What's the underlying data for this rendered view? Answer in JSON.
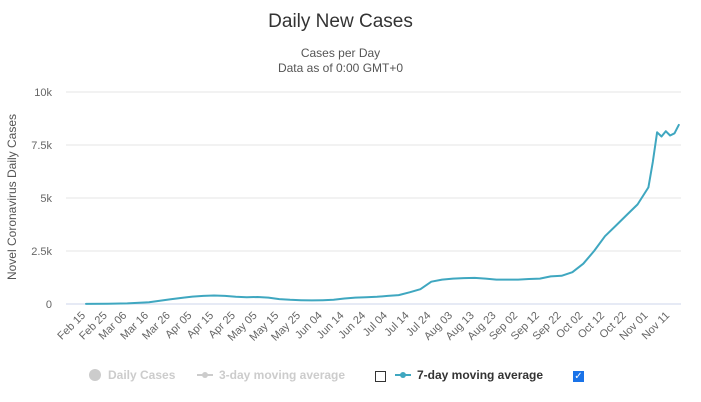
{
  "chart_data": {
    "type": "line",
    "title": "Daily New Cases",
    "subtitle_lines": [
      "Cases per Day",
      "Data as of 0:00 GMT+0"
    ],
    "ylabel": "Novel Coronavirus Daily Cases",
    "xlabel": "",
    "ylim": [
      0,
      10000
    ],
    "yticks": [
      0,
      2500,
      5000,
      7500,
      10000
    ],
    "ytick_labels": [
      "0",
      "2.5k",
      "5k",
      "7.5k",
      "10k"
    ],
    "xtick_labels": [
      "Feb 15",
      "Feb 25",
      "Mar 06",
      "Mar 16",
      "Mar 26",
      "Apr 05",
      "Apr 15",
      "Apr 25",
      "May 05",
      "May 15",
      "May 25",
      "Jun 04",
      "Jun 14",
      "Jun 24",
      "Jul 04",
      "Jul 14",
      "Jul 24",
      "Aug 03",
      "Aug 13",
      "Aug 23",
      "Sep 02",
      "Sep 12",
      "Sep 22",
      "Oct 02",
      "Oct 12",
      "Oct 22",
      "Nov 01",
      "Nov 11"
    ],
    "grid": true,
    "legend_position": "bottom",
    "series": [
      {
        "name": "7-day moving average",
        "color": "#3fa7c0",
        "x": [
          "Feb 15",
          "Feb 25",
          "Mar 06",
          "Mar 16",
          "Mar 26",
          "Apr 01",
          "Apr 05",
          "Apr 10",
          "Apr 15",
          "Apr 20",
          "Apr 25",
          "Apr 30",
          "May 05",
          "May 10",
          "May 15",
          "May 20",
          "May 25",
          "May 30",
          "Jun 04",
          "Jun 09",
          "Jun 14",
          "Jun 19",
          "Jun 24",
          "Jun 29",
          "Jul 04",
          "Jul 09",
          "Jul 14",
          "Jul 19",
          "Jul 24",
          "Jul 29",
          "Aug 03",
          "Aug 08",
          "Aug 13",
          "Aug 18",
          "Aug 23",
          "Aug 28",
          "Sep 02",
          "Sep 07",
          "Sep 12",
          "Sep 17",
          "Sep 22",
          "Sep 27",
          "Oct 02",
          "Oct 07",
          "Oct 12",
          "Oct 17",
          "Oct 22",
          "Oct 27",
          "Nov 01",
          "Nov 03",
          "Nov 05",
          "Nov 07",
          "Nov 09",
          "Nov 11",
          "Nov 13",
          "Nov 15"
        ],
        "values": [
          5,
          10,
          30,
          80,
          220,
          300,
          350,
          380,
          400,
          380,
          340,
          320,
          330,
          300,
          230,
          200,
          180,
          170,
          180,
          200,
          260,
          300,
          320,
          340,
          380,
          420,
          550,
          700,
          1050,
          1150,
          1200,
          1220,
          1230,
          1200,
          1150,
          1150,
          1150,
          1180,
          1200,
          1300,
          1330,
          1500,
          1900,
          2500,
          3200,
          3700,
          4200,
          4700,
          5500,
          6700,
          8100,
          7900,
          8150,
          7950,
          8050,
          8450
        ]
      }
    ]
  },
  "legend": {
    "daily_cases": "Daily Cases",
    "three_day": "3-day moving average",
    "seven_day": "7-day moving average"
  }
}
